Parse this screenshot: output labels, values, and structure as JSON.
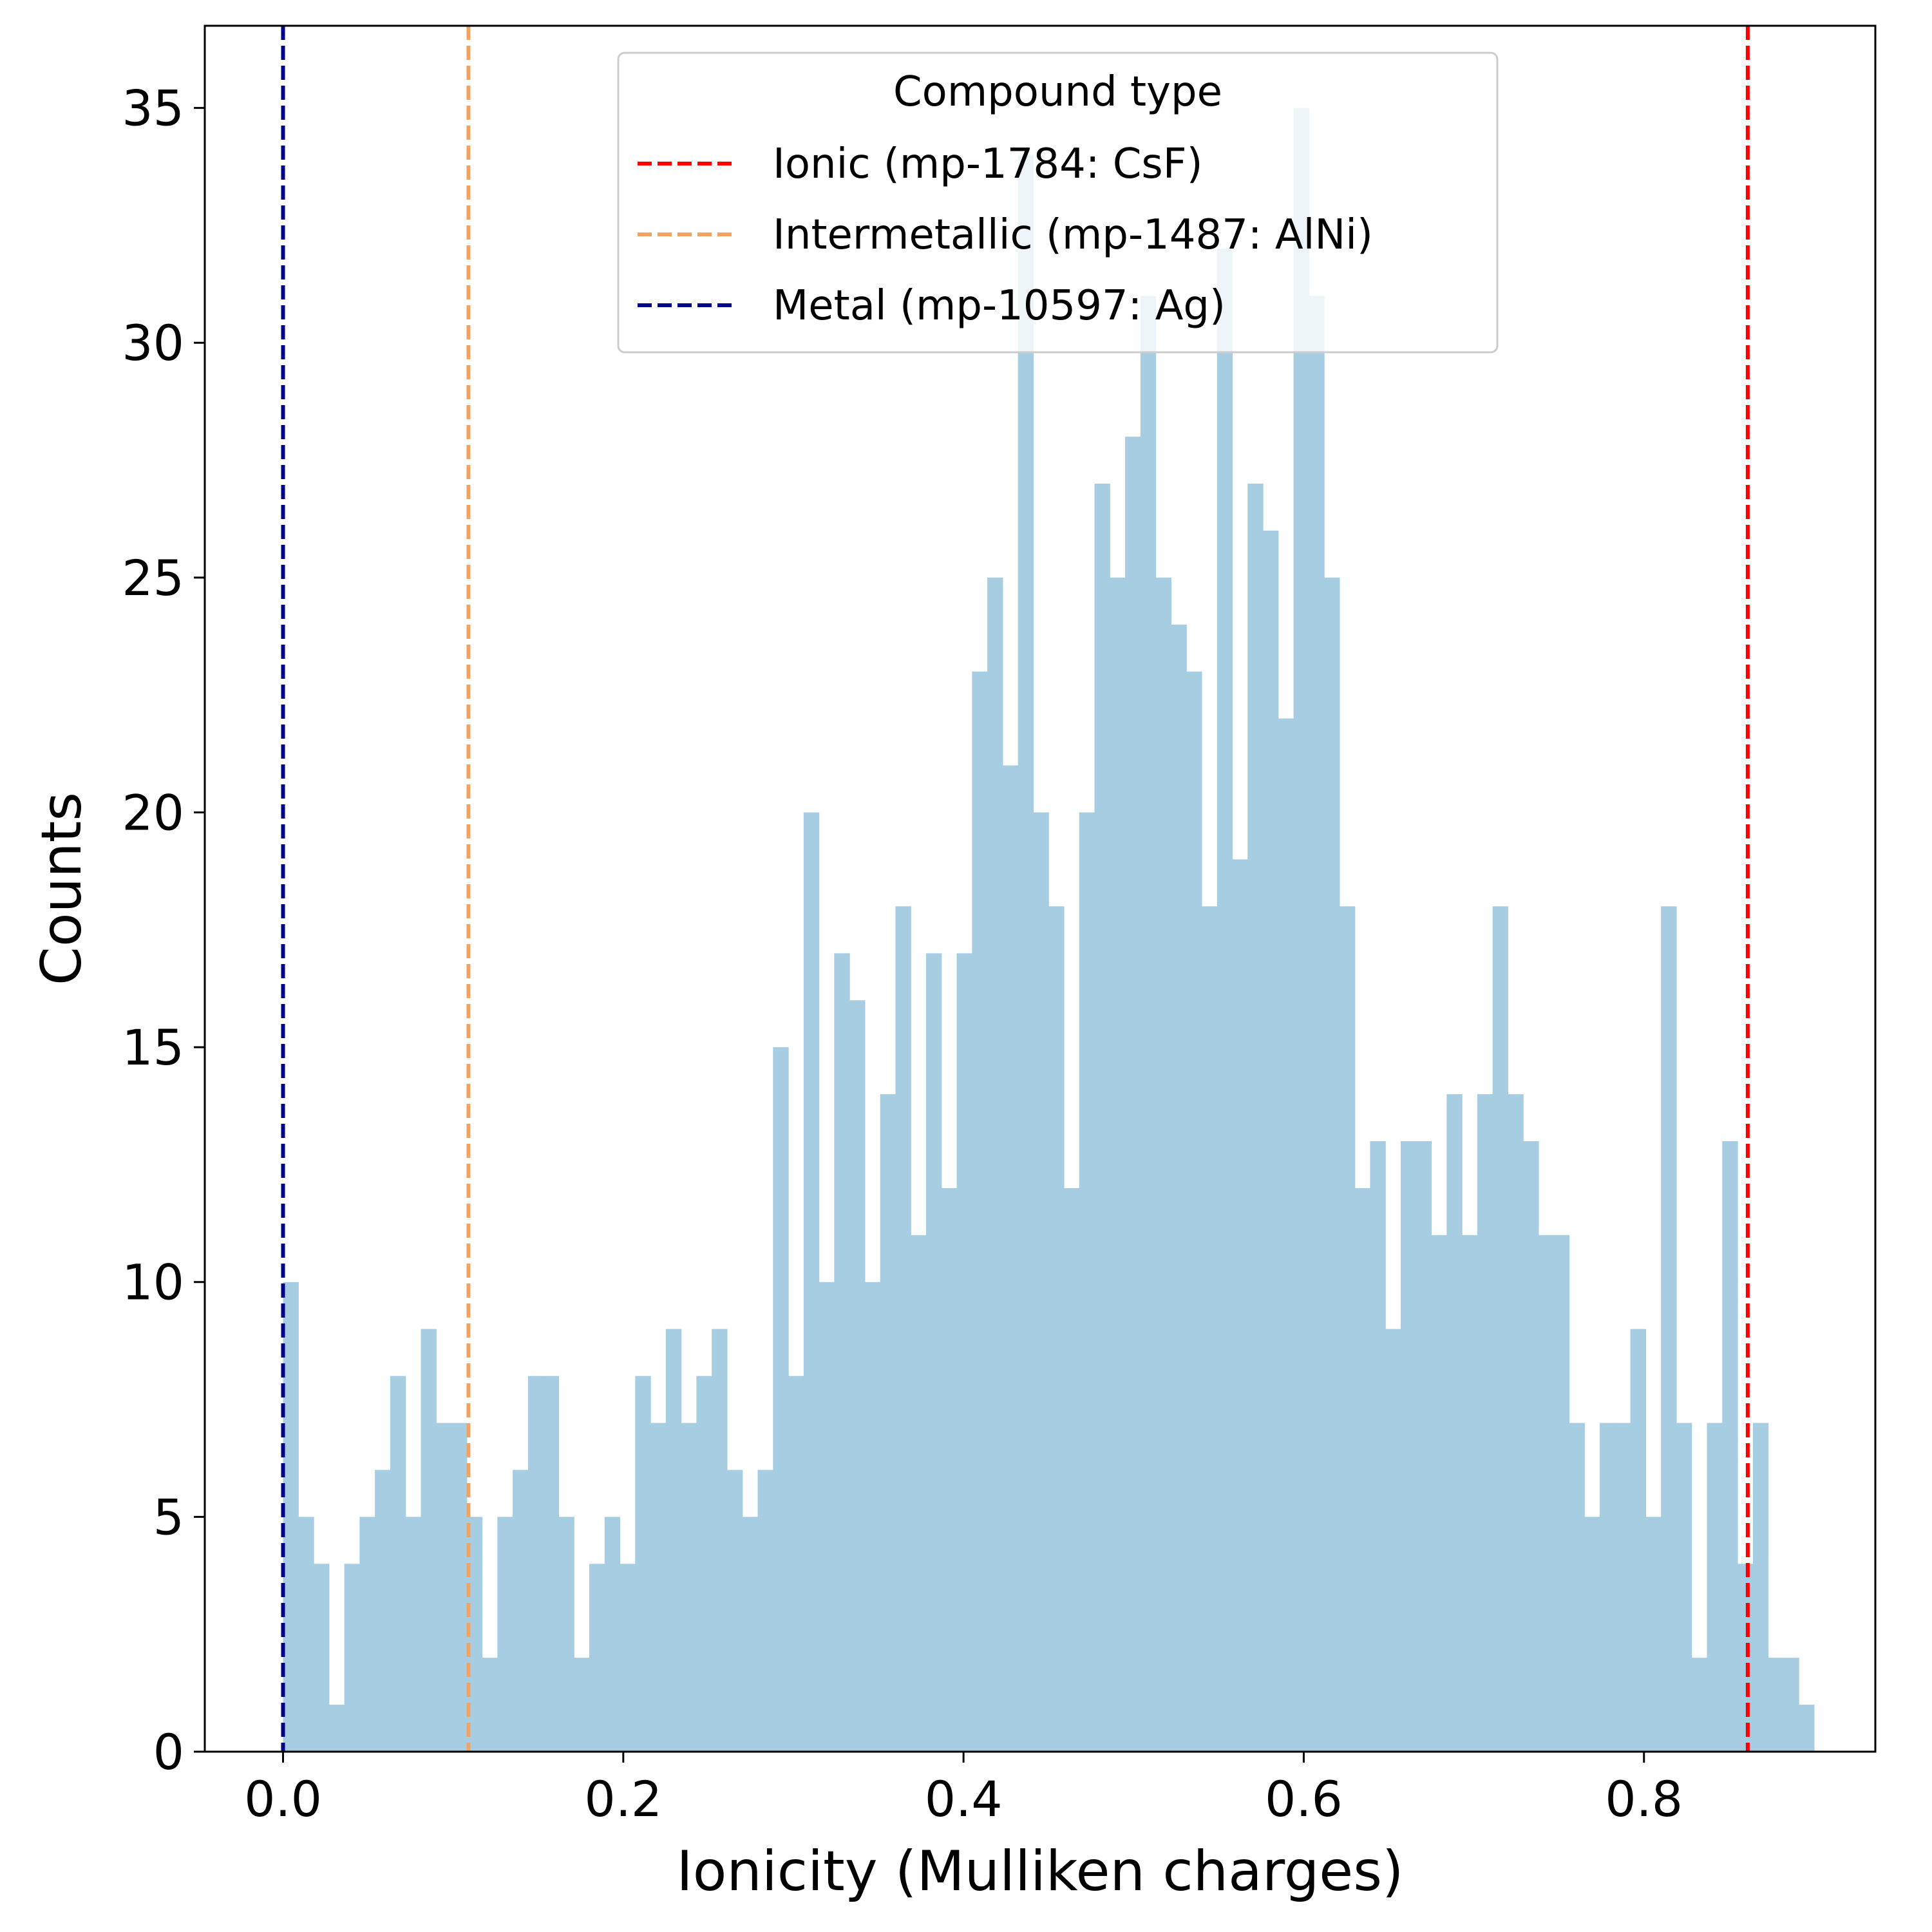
{
  "chart_data": {
    "type": "bar",
    "subtype": "histogram",
    "title": "",
    "xlabel": "Ionicity (Mulliken charges)",
    "ylabel": "Counts",
    "xlim": [
      -0.046,
      0.936
    ],
    "ylim": [
      0,
      36.75
    ],
    "xticks": [
      0.0,
      0.2,
      0.4,
      0.6,
      0.8
    ],
    "xtick_labels": [
      "0.0",
      "0.2",
      "0.4",
      "0.6",
      "0.8"
    ],
    "yticks": [
      0,
      5,
      10,
      15,
      20,
      25,
      30,
      35
    ],
    "ytick_labels": [
      "0",
      "5",
      "10",
      "15",
      "20",
      "25",
      "30",
      "35"
    ],
    "grid": false,
    "bins": {
      "start": 0.0,
      "width": 0.009,
      "color": "#a6cde2"
    },
    "values": [
      10,
      5,
      4,
      1,
      4,
      5,
      6,
      8,
      5,
      9,
      7,
      7,
      5,
      2,
      5,
      6,
      8,
      8,
      5,
      2,
      4,
      5,
      4,
      8,
      7,
      9,
      7,
      8,
      9,
      6,
      5,
      6,
      15,
      8,
      20,
      10,
      17,
      16,
      10,
      14,
      18,
      11,
      17,
      12,
      17,
      23,
      25,
      21,
      34,
      20,
      18,
      12,
      20,
      27,
      25,
      28,
      31,
      25,
      24,
      23,
      18,
      32,
      19,
      27,
      26,
      22,
      35,
      31,
      25,
      18,
      12,
      13,
      9,
      13,
      13,
      11,
      14,
      11,
      14,
      18,
      14,
      13,
      11,
      11,
      7,
      5,
      7,
      7,
      9,
      5,
      18,
      7,
      2,
      7,
      13,
      4,
      7,
      2,
      2,
      1
    ],
    "reference_lines": [
      {
        "name": "Ionic (mp-1784: CsF)",
        "x": 0.861,
        "color": "#ff0000"
      },
      {
        "name": "Intermetallic (mp-1487: AlNi)",
        "x": 0.109,
        "color": "#f4a261"
      },
      {
        "name": "Metal (mp-10597: Ag)",
        "x": 0.0,
        "color": "#00008b"
      }
    ],
    "legend": {
      "title": "Compound type",
      "placement": "top-center",
      "entries": [
        "Ionic (mp-1784: CsF)",
        "Intermetallic (mp-1487: AlNi)",
        "Metal (mp-10597: Ag)"
      ]
    }
  }
}
